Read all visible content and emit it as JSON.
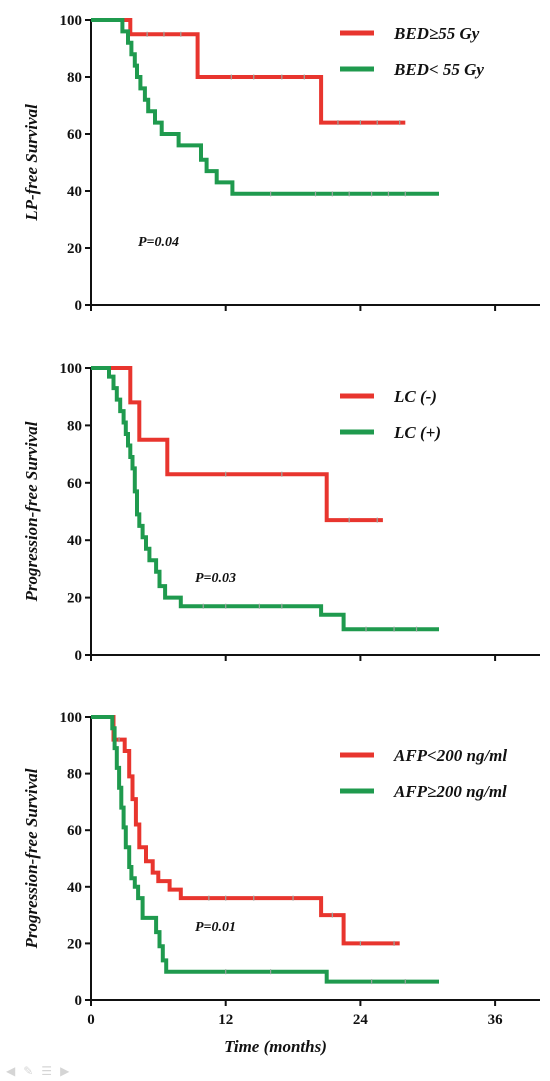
{
  "chart_data": [
    {
      "type": "line",
      "step": true,
      "xlabel": "",
      "ylabel": "LP-free Survival",
      "xlim": [
        0,
        40
      ],
      "ylim": [
        0,
        100
      ],
      "xticks": [
        "0",
        "12",
        "24",
        "36"
      ],
      "yticks": [
        "0",
        "20",
        "40",
        "60",
        "80",
        "100"
      ],
      "annotation": "P=0.04",
      "legend_position": "top-right",
      "series": [
        {
          "name": "BED≥55 Gy",
          "color": "#e8352e",
          "points": [
            [
              0,
              100
            ],
            [
              3.5,
              100
            ],
            [
              3.5,
              95
            ],
            [
              9.5,
              95
            ],
            [
              9.5,
              80
            ],
            [
              20.5,
              80
            ],
            [
              20.5,
              64
            ],
            [
              28,
              64
            ]
          ],
          "censored": [
            [
              5,
              95
            ],
            [
              6.5,
              95
            ],
            [
              8,
              95
            ],
            [
              12.5,
              80
            ],
            [
              14.5,
              80
            ],
            [
              17,
              80
            ],
            [
              19,
              80
            ],
            [
              22,
              64
            ],
            [
              24,
              64
            ],
            [
              25.5,
              64
            ],
            [
              27.5,
              64
            ]
          ]
        },
        {
          "name": "BED< 55 Gy",
          "color": "#1f9a4e",
          "points": [
            [
              0,
              100
            ],
            [
              2.8,
              100
            ],
            [
              2.8,
              96
            ],
            [
              3.3,
              96
            ],
            [
              3.3,
              92
            ],
            [
              3.6,
              92
            ],
            [
              3.6,
              88
            ],
            [
              3.9,
              88
            ],
            [
              3.9,
              84
            ],
            [
              4.1,
              84
            ],
            [
              4.1,
              80
            ],
            [
              4.4,
              80
            ],
            [
              4.4,
              76
            ],
            [
              4.8,
              76
            ],
            [
              4.8,
              72
            ],
            [
              5.1,
              72
            ],
            [
              5.1,
              68
            ],
            [
              5.7,
              68
            ],
            [
              5.7,
              64
            ],
            [
              6.3,
              64
            ],
            [
              6.3,
              60
            ],
            [
              7.8,
              60
            ],
            [
              7.8,
              56
            ],
            [
              9.8,
              56
            ],
            [
              9.8,
              51
            ],
            [
              10.3,
              51
            ],
            [
              10.3,
              47
            ],
            [
              11.2,
              47
            ],
            [
              11.2,
              43
            ],
            [
              12.6,
              43
            ],
            [
              12.6,
              39
            ],
            [
              31,
              39
            ]
          ],
          "censored": [
            [
              16,
              39
            ],
            [
              20,
              39
            ],
            [
              21.5,
              39
            ],
            [
              23,
              39
            ],
            [
              25,
              39
            ],
            [
              26.5,
              39
            ],
            [
              28,
              39
            ]
          ]
        }
      ]
    },
    {
      "type": "line",
      "step": true,
      "xlabel": "",
      "ylabel": "Progression-free Survival",
      "xlim": [
        0,
        40
      ],
      "ylim": [
        0,
        100
      ],
      "xticks": [
        "0",
        "12",
        "24",
        "36"
      ],
      "yticks": [
        "0",
        "20",
        "40",
        "60",
        "80",
        "100"
      ],
      "annotation": "P=0.03",
      "legend_position": "top-right",
      "series": [
        {
          "name": "LC  (-)",
          "color": "#e8352e",
          "points": [
            [
              0,
              100
            ],
            [
              3.5,
              100
            ],
            [
              3.5,
              88
            ],
            [
              4.3,
              88
            ],
            [
              4.3,
              75
            ],
            [
              6.8,
              75
            ],
            [
              6.8,
              63
            ],
            [
              21,
              63
            ],
            [
              21,
              47
            ],
            [
              26,
              47
            ]
          ],
          "censored": [
            [
              12,
              63
            ],
            [
              17,
              63
            ],
            [
              23,
              47
            ],
            [
              25.5,
              47
            ]
          ]
        },
        {
          "name": "LC (+)",
          "color": "#1f9a4e",
          "points": [
            [
              0,
              100
            ],
            [
              1.6,
              100
            ],
            [
              1.6,
              97
            ],
            [
              2,
              97
            ],
            [
              2,
              93
            ],
            [
              2.3,
              93
            ],
            [
              2.3,
              89
            ],
            [
              2.6,
              89
            ],
            [
              2.6,
              85
            ],
            [
              2.9,
              85
            ],
            [
              2.9,
              81
            ],
            [
              3.1,
              81
            ],
            [
              3.1,
              77
            ],
            [
              3.3,
              77
            ],
            [
              3.3,
              73
            ],
            [
              3.5,
              73
            ],
            [
              3.5,
              69
            ],
            [
              3.7,
              69
            ],
            [
              3.7,
              65
            ],
            [
              3.9,
              65
            ],
            [
              3.9,
              57
            ],
            [
              4.1,
              57
            ],
            [
              4.1,
              49
            ],
            [
              4.3,
              49
            ],
            [
              4.3,
              45
            ],
            [
              4.6,
              45
            ],
            [
              4.6,
              41
            ],
            [
              4.9,
              41
            ],
            [
              4.9,
              37
            ],
            [
              5.2,
              37
            ],
            [
              5.2,
              33
            ],
            [
              5.8,
              33
            ],
            [
              5.8,
              29
            ],
            [
              6.1,
              29
            ],
            [
              6.1,
              24
            ],
            [
              6.6,
              24
            ],
            [
              6.6,
              20
            ],
            [
              8,
              20
            ],
            [
              8,
              17
            ],
            [
              20.5,
              17
            ],
            [
              20.5,
              14
            ],
            [
              22.5,
              14
            ],
            [
              22.5,
              9
            ],
            [
              31,
              9
            ]
          ],
          "censored": [
            [
              10,
              17
            ],
            [
              12,
              17
            ],
            [
              15,
              17
            ],
            [
              17,
              17
            ],
            [
              24.5,
              9
            ],
            [
              27,
              9
            ],
            [
              29,
              9
            ]
          ]
        }
      ]
    },
    {
      "type": "line",
      "step": true,
      "xlabel": "Time (months)",
      "ylabel": "Progression-free Survival",
      "xlim": [
        0,
        40
      ],
      "ylim": [
        0,
        100
      ],
      "xticks": [
        "0",
        "12",
        "24",
        "36"
      ],
      "yticks": [
        "0",
        "20",
        "40",
        "60",
        "80",
        "100"
      ],
      "annotation": "P=0.01",
      "legend_position": "top-right",
      "series": [
        {
          "name": "AFP<200 ng/ml",
          "color": "#e8352e",
          "points": [
            [
              0,
              100
            ],
            [
              2,
              100
            ],
            [
              2,
              92
            ],
            [
              3,
              92
            ],
            [
              3,
              88
            ],
            [
              3.4,
              88
            ],
            [
              3.4,
              79
            ],
            [
              3.7,
              79
            ],
            [
              3.7,
              71
            ],
            [
              4,
              71
            ],
            [
              4,
              62
            ],
            [
              4.3,
              62
            ],
            [
              4.3,
              54
            ],
            [
              4.9,
              54
            ],
            [
              4.9,
              49
            ],
            [
              5.5,
              49
            ],
            [
              5.5,
              45
            ],
            [
              6,
              45
            ],
            [
              6,
              42
            ],
            [
              7,
              42
            ],
            [
              7,
              39
            ],
            [
              8,
              39
            ],
            [
              8,
              36
            ],
            [
              20.5,
              36
            ],
            [
              20.5,
              30
            ],
            [
              22.5,
              30
            ],
            [
              22.5,
              20
            ],
            [
              27.5,
              20
            ]
          ],
          "censored": [
            [
              2.5,
              92
            ],
            [
              10.5,
              36
            ],
            [
              12,
              36
            ],
            [
              14.5,
              36
            ],
            [
              18,
              36
            ],
            [
              21.5,
              30
            ],
            [
              24,
              20
            ],
            [
              27,
              20
            ]
          ]
        },
        {
          "name": "AFP≥200 ng/ml",
          "color": "#1f9a4e",
          "points": [
            [
              0,
              100
            ],
            [
              1.9,
              100
            ],
            [
              1.9,
              96
            ],
            [
              2.1,
              96
            ],
            [
              2.1,
              89
            ],
            [
              2.3,
              89
            ],
            [
              2.3,
              82
            ],
            [
              2.5,
              82
            ],
            [
              2.5,
              75
            ],
            [
              2.7,
              75
            ],
            [
              2.7,
              68
            ],
            [
              2.9,
              68
            ],
            [
              2.9,
              61
            ],
            [
              3.1,
              61
            ],
            [
              3.1,
              54
            ],
            [
              3.4,
              54
            ],
            [
              3.4,
              47
            ],
            [
              3.6,
              47
            ],
            [
              3.6,
              43
            ],
            [
              3.9,
              43
            ],
            [
              3.9,
              40
            ],
            [
              4.2,
              40
            ],
            [
              4.2,
              36
            ],
            [
              4.6,
              36
            ],
            [
              4.6,
              29
            ],
            [
              5.8,
              29
            ],
            [
              5.8,
              24
            ],
            [
              6.1,
              24
            ],
            [
              6.1,
              19
            ],
            [
              6.4,
              19
            ],
            [
              6.4,
              14
            ],
            [
              6.7,
              14
            ],
            [
              6.7,
              10
            ],
            [
              21,
              10
            ],
            [
              21,
              6.5
            ],
            [
              31,
              6.5
            ]
          ],
          "censored": [
            [
              12,
              10
            ],
            [
              16,
              10
            ],
            [
              25,
              6.5
            ],
            [
              28,
              6.5
            ]
          ]
        }
      ]
    }
  ]
}
